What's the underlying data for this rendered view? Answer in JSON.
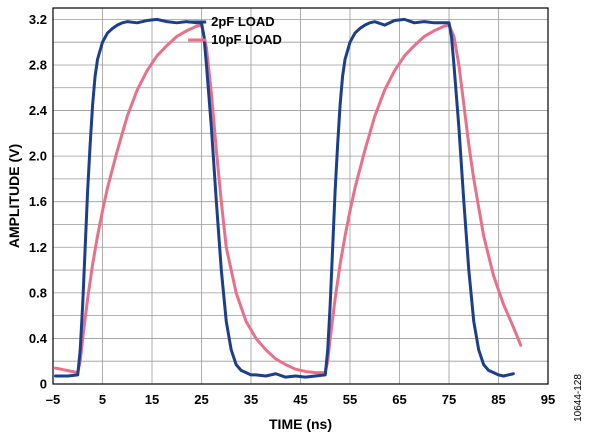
{
  "chart_data": {
    "type": "line",
    "xlabel": "TIME (ns)",
    "ylabel": "AMPLITUDE (V)",
    "xlim": [
      -5,
      95
    ],
    "ylim": [
      0,
      3.3
    ],
    "xticks": [
      "–5",
      "5",
      "15",
      "25",
      "35",
      "45",
      "55",
      "65",
      "75",
      "85",
      "95"
    ],
    "xtick_values": [
      -5,
      5,
      15,
      25,
      35,
      45,
      55,
      65,
      75,
      85,
      95
    ],
    "yticks": [
      "0",
      "0.4",
      "0.8",
      "1.2",
      "1.6",
      "2.0",
      "2.4",
      "2.8",
      "3.2"
    ],
    "ytick_values": [
      0,
      0.4,
      0.8,
      1.2,
      1.6,
      2.0,
      2.4,
      2.8,
      3.2
    ],
    "grid": true,
    "legend_position": "top-center",
    "figure_id": "10644-128",
    "series": [
      {
        "name": "2pF LOAD",
        "color": "#1b3f8b",
        "x": [
          -4.5,
          -2,
          0,
          0.5,
          1,
          1.5,
          2,
          2.5,
          3,
          3.5,
          4,
          5,
          6,
          7,
          8,
          9,
          10,
          12,
          14,
          16,
          18,
          20,
          22,
          24,
          25,
          25.5,
          26,
          27,
          28,
          29,
          30,
          31,
          32,
          33,
          34,
          35,
          36,
          38,
          40,
          42,
          44,
          46,
          48,
          50,
          50.5,
          51,
          51.5,
          52,
          52.5,
          53,
          53.5,
          54,
          55,
          56,
          57,
          58,
          59,
          60,
          62,
          64,
          66,
          68,
          70,
          72,
          74,
          75,
          75.5,
          76,
          77,
          78,
          79,
          80,
          81,
          82,
          83,
          84,
          85,
          86,
          88
        ],
        "values": [
          0.07,
          0.07,
          0.08,
          0.3,
          0.7,
          1.2,
          1.7,
          2.1,
          2.45,
          2.7,
          2.85,
          3.0,
          3.08,
          3.12,
          3.15,
          3.17,
          3.18,
          3.17,
          3.19,
          3.2,
          3.18,
          3.17,
          3.18,
          3.17,
          3.17,
          3.05,
          2.8,
          2.25,
          1.6,
          1.0,
          0.55,
          0.3,
          0.17,
          0.12,
          0.1,
          0.08,
          0.08,
          0.07,
          0.09,
          0.06,
          0.07,
          0.06,
          0.07,
          0.08,
          0.3,
          0.7,
          1.2,
          1.7,
          2.1,
          2.45,
          2.7,
          2.85,
          3.0,
          3.08,
          3.12,
          3.15,
          3.17,
          3.18,
          3.15,
          3.19,
          3.2,
          3.17,
          3.18,
          3.17,
          3.17,
          3.17,
          3.05,
          2.8,
          2.25,
          1.6,
          1.0,
          0.55,
          0.3,
          0.17,
          0.12,
          0.1,
          0.08,
          0.07,
          0.09
        ]
      },
      {
        "name": "10pF LOAD",
        "color": "#e8718a",
        "x": [
          -4.5,
          0,
          0.5,
          1,
          2,
          3,
          4,
          5,
          6,
          8,
          10,
          12,
          14,
          16,
          18,
          20,
          22,
          24,
          25,
          26,
          27,
          28,
          29,
          30,
          32,
          34,
          36,
          38,
          40,
          42,
          44,
          46,
          48,
          50,
          50.5,
          51,
          52,
          53,
          54,
          55,
          56,
          58,
          60,
          62,
          64,
          66,
          68,
          70,
          72,
          74,
          75,
          76,
          77,
          78,
          79,
          80,
          82,
          84,
          86,
          88,
          89.5
        ],
        "values": [
          0.14,
          0.1,
          0.2,
          0.4,
          0.75,
          1.05,
          1.3,
          1.52,
          1.72,
          2.05,
          2.35,
          2.58,
          2.75,
          2.88,
          2.97,
          3.05,
          3.1,
          3.14,
          3.15,
          2.95,
          2.55,
          2.05,
          1.6,
          1.2,
          0.8,
          0.55,
          0.4,
          0.3,
          0.22,
          0.17,
          0.13,
          0.11,
          0.1,
          0.1,
          0.2,
          0.4,
          0.75,
          1.05,
          1.3,
          1.52,
          1.72,
          2.05,
          2.35,
          2.58,
          2.75,
          2.88,
          2.97,
          3.05,
          3.1,
          3.14,
          3.15,
          3.05,
          2.8,
          2.45,
          2.1,
          1.8,
          1.3,
          0.95,
          0.7,
          0.5,
          0.34
        ]
      }
    ]
  }
}
